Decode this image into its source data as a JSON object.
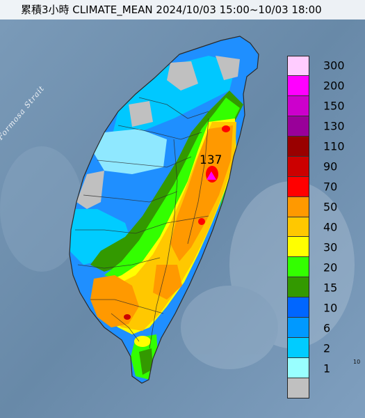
{
  "header": {
    "title": "累積3小時 CLIMATE_MEAN 2024/10/03 15:00~10/03 18:00"
  },
  "map": {
    "strait_label": "Formosa Strait",
    "edge_label": "10",
    "peak": {
      "value": "137",
      "symbol": "magenta-triangle",
      "color": "#ff00ff"
    }
  },
  "legend": {
    "items": [
      {
        "label": "300",
        "color": "#ffccff"
      },
      {
        "label": "200",
        "color": "#ff00ff"
      },
      {
        "label": "150",
        "color": "#cc00cc"
      },
      {
        "label": "130",
        "color": "#990099"
      },
      {
        "label": "110",
        "color": "#990000"
      },
      {
        "label": "90",
        "color": "#cc0000"
      },
      {
        "label": "70",
        "color": "#ff0000"
      },
      {
        "label": "50",
        "color": "#ff9900"
      },
      {
        "label": "40",
        "color": "#ffc800"
      },
      {
        "label": "30",
        "color": "#ffff00"
      },
      {
        "label": "20",
        "color": "#33ff00"
      },
      {
        "label": "15",
        "color": "#339900"
      },
      {
        "label": "10",
        "color": "#0066ff"
      },
      {
        "label": "6",
        "color": "#0099ff"
      },
      {
        "label": "2",
        "color": "#00ccff"
      },
      {
        "label": "1",
        "color": "#99ffff"
      },
      {
        "label": "",
        "color": "#c0c0c0"
      }
    ]
  }
}
